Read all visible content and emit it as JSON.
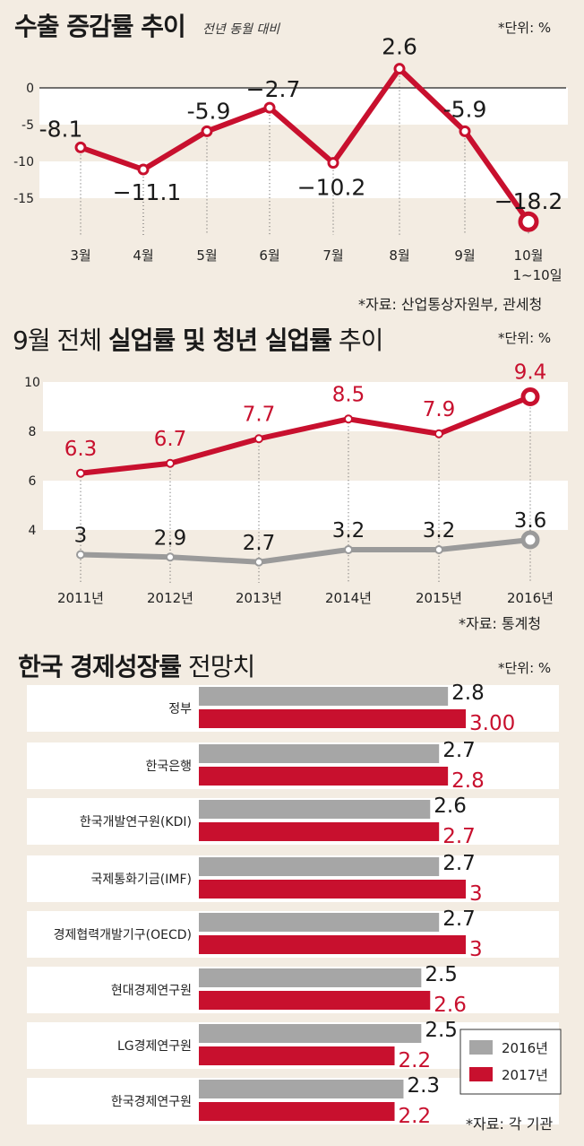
{
  "chart_data": [
    {
      "type": "line",
      "title": "수출 증감률 추이",
      "subtitle": "전년 동월 대비",
      "unit": "*단위: %",
      "source": "*자료: 산업통상자원부, 관세청",
      "categories": [
        "3월",
        "4월",
        "5월",
        "6월",
        "7월",
        "8월",
        "9월",
        "10월"
      ],
      "last_category_note": "1~10일",
      "values": [
        -8.1,
        -11.1,
        -5.9,
        -2.7,
        -10.2,
        2.6,
        -5.9,
        -18.2
      ],
      "value_labels": [
        "-8.1",
        "−11.1",
        "-5.9",
        "−2.7",
        "−10.2",
        "2.6",
        "-5.9",
        "−18.2"
      ],
      "yticks": [
        "0",
        "-5",
        "-10",
        "-15"
      ],
      "ylim": [
        -18.5,
        3.5
      ],
      "color": "#c8102e"
    },
    {
      "type": "line",
      "title_plain": "9월 전체 ",
      "title_bold": "실업률 및 청년 실업률",
      "title_tail": " 추이",
      "unit": "*단위: %",
      "source": "*자료: 통계청",
      "categories": [
        "2011년",
        "2012년",
        "2013년",
        "2014년",
        "2015년",
        "2016년"
      ],
      "series": [
        {
          "name": "청년 실업률",
          "values": [
            6.3,
            6.7,
            7.7,
            8.5,
            7.9,
            9.4
          ],
          "labels": [
            "6.3",
            "6.7",
            "7.7",
            "8.5",
            "7.9",
            "9.4"
          ],
          "color": "#c8102e"
        },
        {
          "name": "전체 실업률",
          "values": [
            3.0,
            2.9,
            2.7,
            3.2,
            3.2,
            3.6
          ],
          "labels": [
            "3",
            "2.9",
            "2.7",
            "3.2",
            "3.2",
            "3.6"
          ],
          "color": "#9a9a9a"
        }
      ],
      "yticks": [
        "10",
        "8",
        "6",
        "4"
      ],
      "ylim": [
        2.0,
        10.5
      ]
    },
    {
      "type": "bar",
      "orientation": "horizontal",
      "title_bold": "한국 경제성장률",
      "title_tail": " 전망치",
      "unit": "*단위: %",
      "source": "*자료: 각 기관",
      "categories": [
        "정부",
        "한국은행",
        "한국개발연구원(KDI)",
        "국제통화기금(IMF)",
        "경제협력개발기구(OECD)",
        "현대경제연구원",
        "LG경제연구원",
        "한국경제연구원"
      ],
      "series": [
        {
          "name": "2016년",
          "values": [
            2.8,
            2.7,
            2.6,
            2.7,
            2.7,
            2.5,
            2.5,
            2.3
          ],
          "labels": [
            "2.8",
            "2.7",
            "2.6",
            "2.7",
            "2.7",
            "2.5",
            "2.5",
            "2.3"
          ],
          "color": "#a6a6a6"
        },
        {
          "name": "2017년",
          "values": [
            3.0,
            2.8,
            2.7,
            3.0,
            3.0,
            2.6,
            2.2,
            2.2
          ],
          "labels": [
            "3.00",
            "2.8",
            "2.7",
            "3",
            "3",
            "2.6",
            "2.2",
            "2.2"
          ],
          "color": "#c8102e"
        }
      ],
      "xlim": [
        0,
        3.1
      ]
    }
  ]
}
